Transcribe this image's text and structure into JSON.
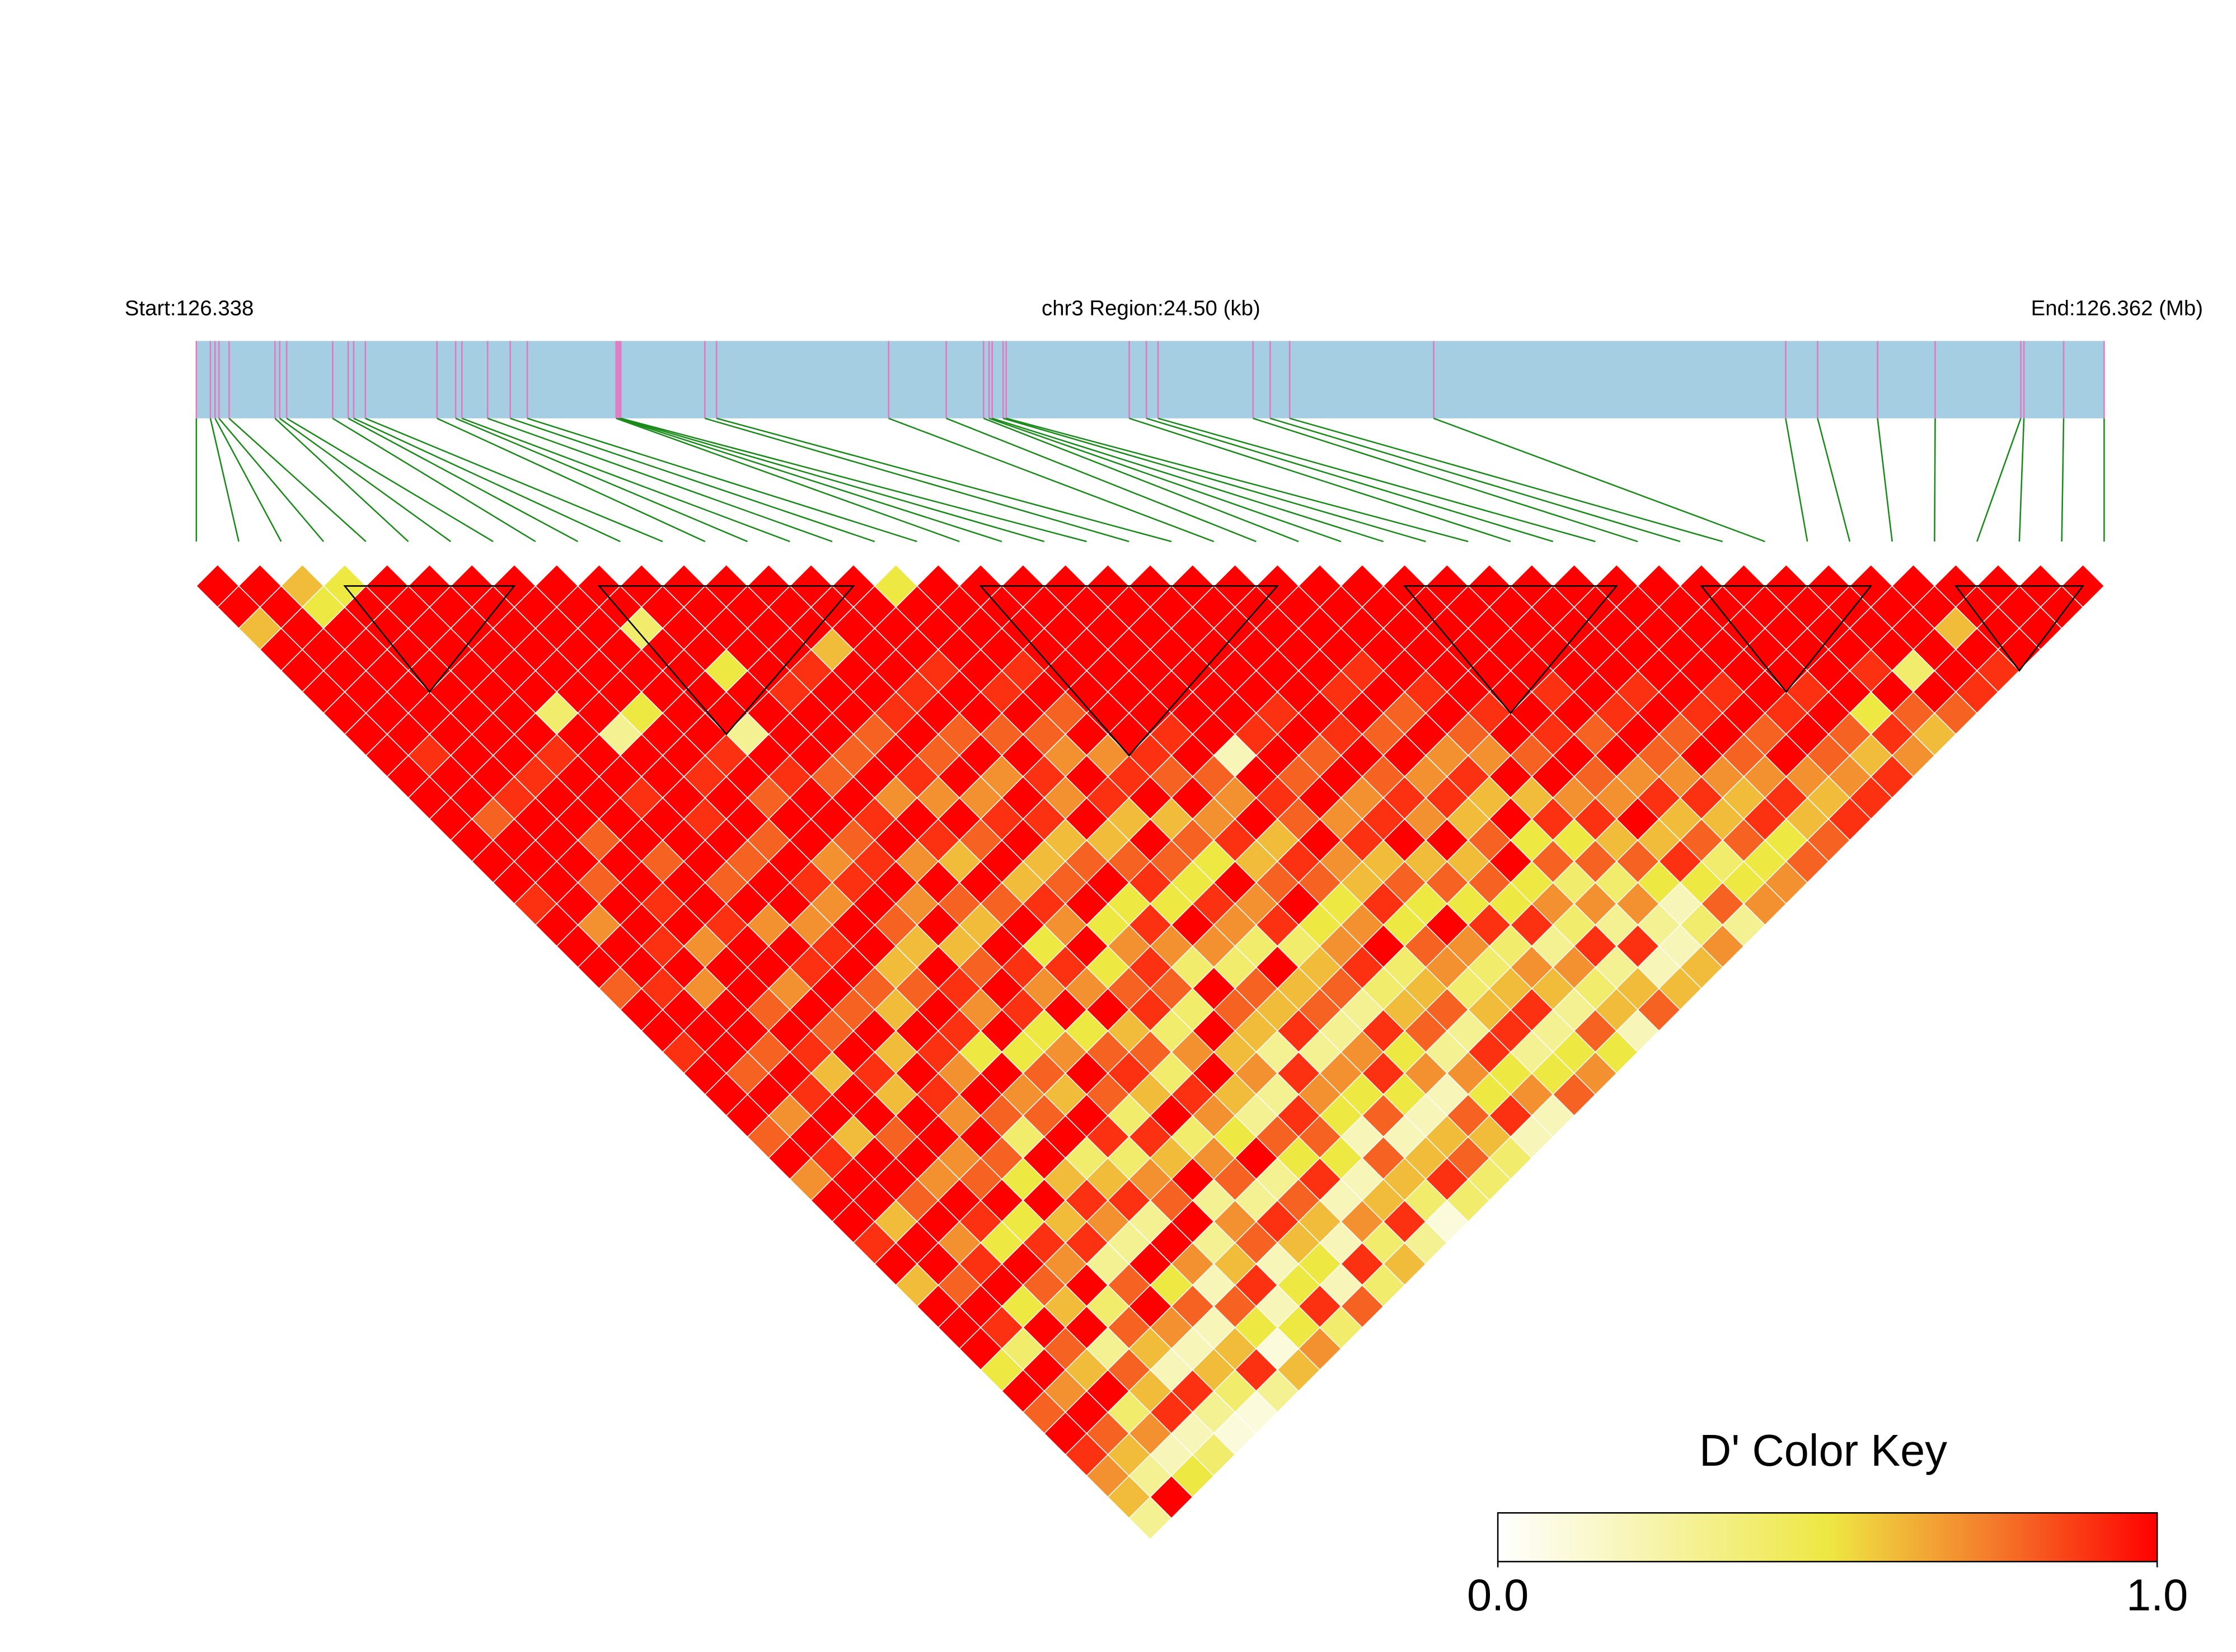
{
  "chart_data": {
    "type": "ld_heatmap",
    "start_label": "Start:126.338",
    "region_label": "chr3 Region:24.50 (kb)",
    "end_label": "End:126.362 (Mb)",
    "xlim": [
      0,
      24.5
    ],
    "bar_color": "#a6cee3",
    "marker_color": "#e377c2",
    "connector_color": "#1a8a1a",
    "block_color": "#000000",
    "snp_positions": [
      0,
      0.18,
      0.24,
      0.29,
      0.42,
      1.01,
      1.07,
      1.16,
      1.75,
      1.95,
      2.02,
      2.17,
      3.09,
      3.33,
      3.41,
      3.74,
      4.03,
      4.25,
      5.39,
      5.41,
      5.43,
      5.45,
      6.53,
      6.68,
      8.89,
      9.63,
      10.11,
      10.18,
      10.22,
      10.36,
      10.4,
      11.98,
      12.2,
      12.35,
      13.57,
      13.79,
      14.04,
      15.89,
      20.41,
      20.82,
      21.59,
      22.33,
      23.43,
      23.47,
      23.98,
      24.5
    ],
    "dprime_rows": [
      [
        1,
        1,
        0.6,
        1,
        1,
        1,
        1,
        1,
        1,
        1,
        1,
        1,
        1,
        1,
        1,
        0.9,
        1,
        1,
        1,
        0.8,
        1,
        1,
        0.9,
        1,
        1,
        1,
        0.8,
        1,
        0.7,
        1,
        1,
        0.9,
        1,
        0.6,
        1,
        1,
        1,
        0.5,
        1,
        0.8,
        1,
        0.9,
        0.7,
        0.6,
        0.3
      ],
      [
        1,
        1,
        1,
        1,
        1,
        1,
        1,
        1,
        0.9,
        1,
        1,
        0.8,
        1,
        1,
        1,
        1,
        0.7,
        1,
        1,
        0.9,
        1,
        1,
        1,
        0.8,
        1,
        0.7,
        1,
        0.9,
        1,
        1,
        0.6,
        1,
        1,
        0.8,
        1,
        0.9,
        0.4,
        1,
        0.7,
        1,
        0.8,
        0.6,
        0.3,
        1
      ],
      [
        0.6,
        0.5,
        1,
        1,
        1,
        1,
        1,
        1,
        1,
        1,
        0.9,
        1,
        1,
        1,
        0.8,
        1,
        1,
        0.9,
        1,
        0.7,
        1,
        1,
        0.8,
        1,
        0.9,
        1,
        0.6,
        1,
        1,
        0.8,
        1,
        0.7,
        0.9,
        1,
        0.5,
        1,
        0.8,
        0.6,
        1,
        0.4,
        0.7,
        0.2,
        0.5
      ],
      [
        0.5,
        1,
        1,
        1,
        1,
        1,
        1,
        1,
        1,
        0.9,
        1,
        1,
        0.8,
        1,
        1,
        0.9,
        1,
        0.7,
        1,
        1,
        0.8,
        1,
        0.9,
        0.6,
        1,
        1,
        0.8,
        1,
        0.7,
        1,
        0.9,
        0.5,
        1,
        0.8,
        0.6,
        1,
        0.3,
        0.8,
        0.6,
        0.9,
        0.2,
        0.4
      ],
      [
        1,
        1,
        1,
        1,
        1,
        1,
        1,
        1,
        0.9,
        1,
        1,
        1,
        1,
        0.8,
        1,
        1,
        0.9,
        1,
        1,
        0.7,
        1,
        0.8,
        1,
        0.9,
        0.6,
        1,
        1,
        0.7,
        0.8,
        1,
        0.5,
        0.9,
        0.7,
        1,
        0.4,
        0.8,
        0.6,
        0.2,
        0.9,
        0.3,
        0.1
      ],
      [
        1,
        1,
        1,
        1,
        1,
        1,
        0.4,
        1,
        1,
        1,
        0.9,
        1,
        1,
        1,
        0.8,
        1,
        0.7,
        1,
        0.9,
        1,
        0.8,
        1,
        0.6,
        1,
        0.9,
        0.7,
        1,
        0.8,
        0.5,
        1,
        0.6,
        0.9,
        0.3,
        0.8,
        1,
        0.7,
        0.2,
        0.6,
        0.4,
        0.1
      ],
      [
        1,
        1,
        1,
        1,
        1,
        1,
        1,
        0.3,
        1,
        1,
        1,
        0.9,
        1,
        0.8,
        1,
        1,
        0.7,
        0.9,
        1,
        0.8,
        0.6,
        1,
        0.9,
        0.7,
        1,
        0.8,
        0.4,
        1,
        0.6,
        0.9,
        0.7,
        0.3,
        1,
        0.5,
        0.8,
        0.2,
        0.6,
        0.9,
        0.3
      ],
      [
        1,
        1,
        1,
        1,
        1,
        1,
        0.5,
        1,
        1,
        0.9,
        1,
        1,
        0.8,
        1,
        0.9,
        0.7,
        1,
        1,
        0.6,
        0.8,
        1,
        0.9,
        0.5,
        1,
        0.7,
        0.8,
        1,
        0.4,
        0.6,
        0.9,
        0.3,
        1,
        0.7,
        0.2,
        0.8,
        0.5,
        0.1,
        0.6
      ],
      [
        1,
        1,
        1,
        1,
        1,
        1,
        1,
        1,
        0.9,
        1,
        0.8,
        1,
        1,
        0.7,
        0.9,
        1,
        0.8,
        0.6,
        1,
        0.9,
        0.7,
        1,
        0.5,
        0.8,
        0.6,
        1,
        0.9,
        0.4,
        0.7,
        0.8,
        1,
        0.3,
        0.6,
        0.9,
        0.2,
        0.5,
        0.7
      ],
      [
        1,
        1,
        0.4,
        1,
        1,
        1,
        1,
        0.3,
        1,
        0.9,
        1,
        1,
        0.8,
        0.9,
        1,
        0.7,
        1,
        0.6,
        0.8,
        1,
        0.9,
        0.5,
        0.7,
        1,
        0.8,
        0.4,
        0.9,
        0.6,
        1,
        0.3,
        0.7,
        0.8,
        0.2,
        0.5,
        0.9,
        0.4
      ],
      [
        1,
        1,
        1,
        1,
        0.5,
        1,
        1,
        1,
        1,
        0.8,
        1,
        0.9,
        1,
        0.7,
        1,
        0.8,
        0.6,
        1,
        0.9,
        0.7,
        1,
        0.5,
        0.8,
        0.9,
        0.6,
        1,
        0.4,
        0.7,
        0.8,
        0.3,
        0.9,
        0.6,
        0.5,
        0.2,
        0.8
      ],
      [
        1,
        1,
        1,
        1,
        1,
        0.9,
        1,
        1,
        0.8,
        1,
        0.7,
        1,
        0.9,
        0.6,
        1,
        0.8,
        1,
        0.5,
        0.9,
        0.7,
        1,
        0.6,
        0.8,
        0.4,
        0.9,
        0.7,
        0.5,
        1,
        0.3,
        0.8,
        0.6,
        0.2,
        0.9,
        0.4
      ],
      [
        1,
        1,
        1,
        1,
        0.9,
        1,
        1,
        0.8,
        1,
        0.9,
        0.7,
        1,
        0.8,
        1,
        0.6,
        0.9,
        0.7,
        1,
        0.5,
        0.8,
        0.9,
        0.4,
        0.7,
        1,
        0.6,
        0.3,
        0.8,
        0.5,
        0.9,
        0.2,
        0.7,
        0.4,
        0.6
      ],
      [
        1,
        1,
        1,
        0.6,
        1,
        1,
        0.9,
        1,
        0.8,
        1,
        0.7,
        0.9,
        1,
        0.6,
        0.8,
        1,
        0.5,
        0.7,
        0.9,
        0.8,
        0.4,
        1,
        0.6,
        0.7,
        0.3,
        0.9,
        0.8,
        0.5,
        0.2,
        0.6,
        0.9,
        0.3
      ],
      [
        1,
        1,
        1,
        1,
        1,
        0.9,
        1,
        0.8,
        1,
        0.7,
        1,
        0.9,
        0.6,
        0.8,
        1,
        0.5,
        0.9,
        0.7,
        0.4,
        1,
        0.8,
        0.6,
        0.3,
        0.9,
        0.7,
        0.5,
        0.2,
        0.8,
        0.6,
        0.4,
        0.1
      ],
      [
        1,
        1,
        1,
        1,
        0.9,
        1,
        1,
        0.8,
        1,
        0.9,
        0.7,
        1,
        0.6,
        0.8,
        0.9,
        0.5,
        1,
        0.7,
        0.4,
        0.8,
        0.6,
        0.9,
        0.3,
        0.7,
        0.5,
        0.8,
        0.2,
        0.6,
        0.9,
        0.4
      ],
      [
        0.5,
        1,
        1,
        1,
        1,
        0.9,
        1,
        0.8,
        0.7,
        1,
        0.9,
        0.6,
        1,
        0.8,
        0.5,
        0.9,
        0.7,
        0.4,
        1,
        0.6,
        0.8,
        0.3,
        0.7,
        0.9,
        0.5,
        0.2,
        0.6,
        0.8,
        0.4
      ],
      [
        1,
        1,
        1,
        1,
        0.9,
        1,
        0.8,
        1,
        0.7,
        0.9,
        1,
        0.6,
        0.8,
        0.5,
        1,
        0.7,
        0.9,
        0.4,
        0.6,
        0.8,
        0.3,
        0.9,
        0.5,
        0.7,
        0.2,
        0.8,
        0.6,
        0.4
      ],
      [
        1,
        1,
        1,
        1,
        1,
        1,
        1,
        1,
        0.9,
        0.8,
        1,
        0.7,
        0.9,
        0.6,
        0.8,
        1,
        0.5,
        0.7,
        0.9,
        0.4,
        0.6,
        0.8,
        0.3,
        0.7,
        0.5,
        0.9,
        0.2
      ],
      [
        1,
        1,
        1,
        1,
        1,
        1,
        1,
        0.9,
        1,
        0.8,
        0.7,
        1,
        0.6,
        0.9,
        0.8,
        0.5,
        0.7,
        1,
        0.4,
        0.6,
        0.8,
        0.3,
        0.9,
        0.5,
        0.7,
        0.2
      ],
      [
        1,
        1,
        1,
        1,
        1,
        1,
        1,
        1,
        0.2,
        1,
        0.9,
        0.8,
        1,
        0.7,
        0.6,
        0.9,
        0.5,
        0.8,
        0.7,
        0.4,
        0.6,
        0.9,
        0.3,
        0.5,
        0.8
      ],
      [
        1,
        1,
        1,
        1,
        1,
        1,
        1,
        0.9,
        1,
        0.8,
        1,
        0.7,
        0.9,
        0.6,
        0.8,
        0.5,
        1,
        0.7,
        0.4,
        0.6,
        0.9,
        0.3,
        0.5,
        0.7
      ],
      [
        1,
        1,
        1,
        1,
        1,
        1,
        0.9,
        1,
        0.8,
        1,
        0.7,
        0.9,
        1,
        0.6,
        0.8,
        0.5,
        0.9,
        0.4,
        0.7,
        0.6,
        0.3,
        0.8,
        0.5
      ],
      [
        1,
        1,
        1,
        1,
        1,
        1,
        1,
        0.9,
        1,
        0.8,
        0.9,
        0.7,
        1,
        0.6,
        0.8,
        0.5,
        0.9,
        0.3,
        0.7,
        0.4,
        0.6,
        0.2
      ],
      [
        1,
        1,
        1,
        1,
        1,
        0.9,
        1,
        0.8,
        1,
        0.7,
        0.9,
        0.6,
        0.8,
        1,
        0.5,
        0.7,
        0.4,
        0.9,
        0.3,
        0.6,
        0.8
      ],
      [
        1,
        1,
        1,
        1,
        0.9,
        1,
        0.8,
        1,
        0.7,
        0.9,
        0.6,
        1,
        0.5,
        0.8,
        0.4,
        0.7,
        0.3,
        0.9,
        0.2,
        0.6
      ],
      [
        1,
        1,
        1,
        1,
        1,
        0.9,
        1,
        0.8,
        0.7,
        1,
        0.6,
        0.9,
        0.5,
        0.8,
        0.4,
        0.7,
        0.3,
        0.2,
        0.6
      ],
      [
        1,
        1,
        1,
        1,
        1,
        1,
        0.9,
        1,
        0.8,
        1,
        0.7,
        0.9,
        0.6,
        0.8,
        0.5,
        0.2,
        0.4,
        0.7
      ],
      [
        1,
        1,
        1,
        1,
        1,
        1,
        1,
        0.9,
        1,
        0.8,
        0.7,
        1,
        0.6,
        0.9,
        0.5,
        0.8,
        0.3
      ],
      [
        1,
        1,
        1,
        1,
        1,
        0.9,
        1,
        0.8,
        1,
        0.7,
        0.9,
        0.6,
        0.8,
        0.4,
        0.5,
        0.7
      ],
      [
        1,
        1,
        1,
        1,
        1,
        1,
        0.9,
        1,
        0.8,
        0.7,
        0.9,
        0.6,
        0.8,
        0.5,
        0.7
      ],
      [
        1,
        1,
        1,
        1,
        1,
        0.9,
        1,
        0.8,
        1,
        0.7,
        0.6,
        0.9,
        0.5,
        0.8
      ],
      [
        1,
        1,
        1,
        1,
        1,
        1,
        0.9,
        1,
        0.8,
        0.7,
        0.9,
        0.6,
        0.8
      ],
      [
        1,
        1,
        1,
        1,
        1,
        0.9,
        1,
        0.8,
        1,
        0.7,
        0.6,
        0.9
      ],
      [
        1,
        1,
        1,
        1,
        1,
        1,
        0.9,
        1,
        0.8,
        0.7,
        0.9
      ],
      [
        1,
        1,
        1,
        1,
        1,
        0.9,
        1,
        0.8,
        0.6,
        0.9
      ],
      [
        1,
        1,
        1,
        1,
        1,
        1,
        0.5,
        0.9,
        0.7
      ],
      [
        1,
        1,
        1,
        1,
        0.9,
        1,
        0.8,
        0.6
      ],
      [
        1,
        1,
        1,
        1,
        0.4,
        1,
        0.8
      ],
      [
        1,
        1,
        1,
        1,
        1,
        0.9
      ],
      [
        1,
        1,
        0.6,
        1,
        0.9
      ],
      [
        1,
        1,
        1,
        1
      ],
      [
        1,
        1,
        1
      ],
      [
        1,
        1
      ],
      [
        1
      ]
    ],
    "blocks": [
      [
        3,
        8
      ],
      [
        9,
        16
      ],
      [
        18,
        26
      ],
      [
        28,
        34
      ],
      [
        35,
        40
      ],
      [
        41,
        45
      ]
    ],
    "color_key": {
      "title": "D' Color Key",
      "range": [
        0,
        1
      ],
      "ticks": [
        {
          "value": 0,
          "label": "0.0"
        },
        {
          "value": 1,
          "label": "1.0"
        }
      ],
      "colors": [
        "#ffffff",
        "#f6f3a6",
        "#eee843",
        "#f47b2b",
        "#ff0000"
      ]
    }
  }
}
